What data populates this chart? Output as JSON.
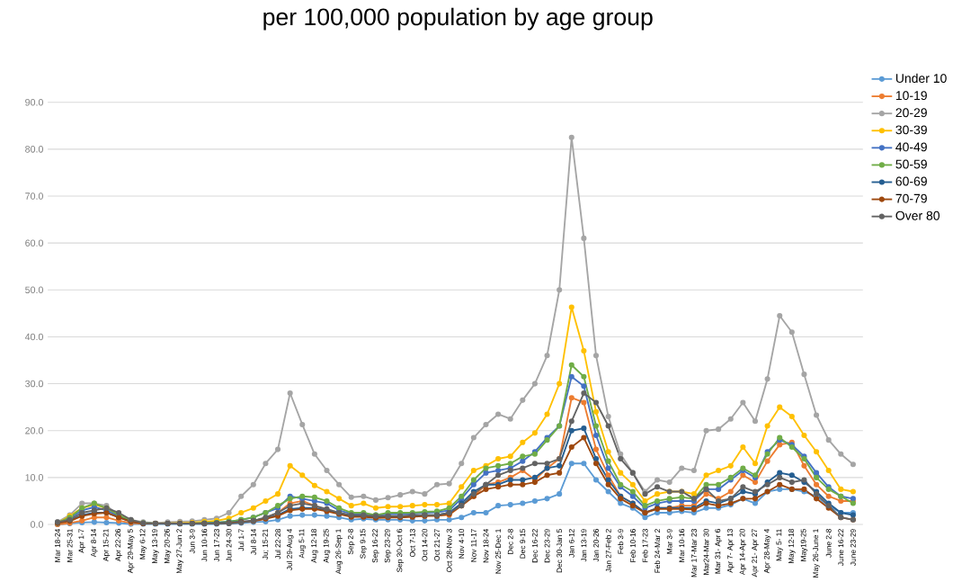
{
  "chart_data": {
    "type": "line",
    "title": "per 100,000 population by age group",
    "categories": [
      "Mar 18-24",
      "Mar 25-31",
      "Apr 1-7",
      "Apr 8-14",
      "Apr 15-21",
      "Apr 22-26",
      "Apr 29-May 5",
      "May 6-12",
      "May 13-19",
      "May 20-26",
      "May 27-Jun 2",
      "Jun 3-9",
      "Jun 10-16",
      "Jun 17-23",
      "Jun 24-30",
      "Jul 1-7",
      "Jul 8-14",
      "Ju; 15-21",
      "Jul 22-28",
      "Jul 29-Aug 4",
      "Aug 5-11",
      "Aug 12-18",
      "Aug 19-25",
      "Aug 26-Sep 1",
      "Sep 2-8",
      "Sep 9-15",
      "Sep 16-22",
      "Sep 23-29",
      "Sep 30-Oct 6",
      "Oct 7-13",
      "Oct 14-20",
      "Oct 21-27",
      "Oct 28-Nov 3",
      "Nov 4-10",
      "Nov 11-17",
      "Nov 18-24",
      "Nov 25-Dec 1",
      "Dec 2-8",
      "Dec 9-15",
      "Dec 16-22",
      "Dec 23-29",
      "Dec 30-Jan 5",
      "Jan 6-12",
      "Jan 13-19",
      "Jan 20-26",
      "Jan 27-Feb 2",
      "Feb 3-9",
      "Feb 10-16",
      "Feb 17-23",
      "Feb 24-Mar 2",
      "Mar 3-9",
      "Mar 10-16",
      "Mar 17-Mar 23",
      "Mar24-Mar 30",
      "Mar 31- Apr 6",
      "Apr 7- Apr 13",
      "Apr 14-Apr 20",
      "Apr 21- Apr 27",
      "Apr 28-May 4",
      "May 5- 11",
      "May 12-18",
      "May19-25",
      "May 26-June 1",
      "June 2-8",
      "June 16-22",
      "June 23-29"
    ],
    "series": [
      {
        "name": "Under 10",
        "color": "#5b9bd5",
        "values": [
          0,
          0.2,
          0.4,
          0.5,
          0.4,
          0.3,
          0.1,
          0.1,
          0.1,
          0.1,
          0.1,
          0.1,
          0.1,
          0.1,
          0.2,
          0.3,
          0.5,
          0.6,
          1,
          1.8,
          2,
          2,
          1.8,
          1.5,
          1,
          1.2,
          1,
          1,
          1,
          0.8,
          0.8,
          1,
          1,
          1.5,
          2.5,
          2.5,
          4,
          4.2,
          4.5,
          5,
          5.5,
          6.5,
          13,
          13,
          9.5,
          7,
          4.5,
          3.5,
          1.5,
          2.5,
          2.5,
          2.8,
          2.5,
          3.5,
          3.5,
          4.2,
          5.5,
          4.5,
          7,
          7.5,
          7.5,
          7,
          6,
          4,
          2.5,
          2.5
        ]
      },
      {
        "name": "10-19",
        "color": "#ed7d31",
        "values": [
          0,
          0.3,
          0.8,
          1.5,
          1.5,
          0.8,
          0.3,
          0.2,
          0.2,
          0.2,
          0.2,
          0.2,
          0.2,
          0.3,
          0.4,
          0.6,
          0.8,
          1.3,
          2.5,
          4.5,
          5,
          4,
          3,
          2.5,
          1.8,
          1.8,
          1.5,
          1.5,
          1.7,
          1.7,
          1.8,
          2,
          2,
          4,
          6,
          8.5,
          9,
          10,
          11.5,
          9.5,
          12,
          14,
          27,
          26,
          16,
          10.5,
          6,
          4.5,
          2.5,
          3.5,
          3.5,
          4,
          4,
          6.5,
          5.5,
          7,
          10.5,
          9,
          13.5,
          17,
          17.5,
          12.5,
          8.5,
          6,
          5,
          5
        ]
      },
      {
        "name": "20-29",
        "color": "#a5a5a5",
        "values": [
          0.5,
          2,
          4.5,
          4.5,
          4,
          2,
          1,
          0.5,
          0.3,
          0.5,
          0.6,
          0.7,
          1,
          1.3,
          2.5,
          6,
          8.5,
          13,
          16,
          28,
          21.3,
          15,
          11.5,
          8.5,
          5.8,
          6,
          5.2,
          5.7,
          6.3,
          7,
          6.5,
          8.5,
          8.7,
          13,
          18.5,
          21.3,
          23.5,
          22.5,
          26.5,
          30,
          36,
          50,
          82.5,
          61,
          36,
          23,
          15,
          11,
          7,
          9.5,
          9,
          12,
          11.5,
          20,
          20.3,
          22.5,
          26,
          22,
          31,
          44.5,
          41,
          32,
          23.3,
          18,
          15,
          12.8
        ]
      },
      {
        "name": "30-39",
        "color": "#ffc000",
        "values": [
          0.3,
          1.8,
          3.5,
          4.2,
          3.5,
          2,
          0.8,
          0.3,
          0.2,
          null,
          0.3,
          0.4,
          0.6,
          0.8,
          1.3,
          2.5,
          3.5,
          5,
          6.5,
          12.5,
          10.5,
          8.3,
          7,
          5.5,
          4,
          4.5,
          3.5,
          3.8,
          3.8,
          4,
          4.2,
          4.2,
          4.5,
          8,
          11.5,
          12.5,
          14,
          14.5,
          17.5,
          19.5,
          23.5,
          30,
          46.3,
          37,
          24,
          15.5,
          11,
          8.5,
          5,
          6.5,
          7,
          7,
          6.5,
          10.5,
          11.5,
          12.5,
          16.5,
          13,
          21,
          25,
          23,
          19,
          15.5,
          11.5,
          7.5,
          7
        ]
      },
      {
        "name": "40-49",
        "color": "#4472c4",
        "values": [
          0.3,
          1.3,
          3,
          3.7,
          3,
          1.8,
          0.7,
          0.3,
          0.2,
          0.2,
          0.2,
          0.2,
          0.3,
          0.4,
          0.6,
          1,
          1.5,
          2.5,
          3.5,
          6,
          5.5,
          5,
          4.5,
          3,
          2.3,
          2.3,
          2,
          2.2,
          2.2,
          2.3,
          2.5,
          2.6,
          3,
          5.5,
          8.5,
          11,
          11.5,
          12,
          13.5,
          15.5,
          18.5,
          21,
          31.5,
          29.5,
          19,
          12,
          8,
          6,
          3.5,
          4.5,
          5,
          5,
          5,
          7.5,
          7.5,
          9.5,
          11.5,
          10,
          15.5,
          18,
          17,
          14.5,
          11,
          8,
          6,
          5.5
        ]
      },
      {
        "name": "50-59",
        "color": "#70ad47",
        "values": [
          0.3,
          1.5,
          3.5,
          4.5,
          3.5,
          2,
          0.8,
          0.3,
          0.2,
          0.2,
          0.2,
          0.2,
          0.3,
          0.4,
          0.6,
          1,
          1.5,
          2.5,
          4,
          5.5,
          6,
          5.8,
          5,
          3.5,
          2.5,
          2.5,
          2,
          2.5,
          2.5,
          2.5,
          2.7,
          2.8,
          3.5,
          6,
          9.5,
          12,
          12.5,
          13,
          14.5,
          15,
          18,
          21,
          34,
          31.5,
          21,
          13.5,
          8.5,
          7,
          4,
          5,
          5.5,
          5.8,
          5.5,
          8.5,
          8.5,
          10,
          12,
          10.5,
          15,
          18.5,
          16.5,
          14,
          10,
          7.5,
          6,
          4.5
        ]
      },
      {
        "name": "60-69",
        "color": "#255e91",
        "values": [
          0.3,
          0.8,
          2,
          2.5,
          2.5,
          1.5,
          0.6,
          0.2,
          0.2,
          0.2,
          0.2,
          0.2,
          0.2,
          0.3,
          0.4,
          0.6,
          0.8,
          1.3,
          2,
          3.3,
          3.5,
          3.5,
          3,
          2.3,
          1.8,
          1.8,
          1.5,
          1.7,
          1.7,
          1.8,
          2,
          2,
          2.5,
          4.5,
          7,
          8.5,
          8.5,
          9.5,
          9.5,
          10,
          12,
          12.5,
          20,
          20.5,
          14,
          9.5,
          6,
          4.5,
          2.5,
          3.5,
          3.5,
          3.5,
          3.5,
          5,
          4.5,
          5.5,
          7,
          6.5,
          9,
          11,
          10.5,
          9,
          7,
          4.5,
          2.5,
          2
        ]
      },
      {
        "name": "70-79",
        "color": "#9e480e",
        "values": [
          0.3,
          0.7,
          1.8,
          2.3,
          2.5,
          1.5,
          0.6,
          0.2,
          0.2,
          0.2,
          0.2,
          0.2,
          0.2,
          0.2,
          0.3,
          0.5,
          0.7,
          1.2,
          1.8,
          3,
          3.3,
          3.3,
          2.8,
          2.2,
          1.6,
          1.6,
          1.4,
          1.5,
          1.5,
          1.6,
          1.8,
          1.8,
          2.2,
          4,
          6,
          7.5,
          8,
          8.5,
          8.5,
          9,
          10.5,
          11,
          16.5,
          18.5,
          13,
          8.5,
          5.5,
          4,
          2.5,
          3.3,
          3.3,
          3.3,
          3.2,
          4.5,
          4,
          4.5,
          5.5,
          5.5,
          7,
          8.5,
          7.5,
          7.5,
          5.5,
          3.5,
          1.5,
          1
        ]
      },
      {
        "name": "Over 80",
        "color": "#636363",
        "values": [
          0.5,
          1,
          2.5,
          3,
          3.5,
          2.5,
          1,
          0.3,
          0.2,
          0.2,
          0.2,
          0.2,
          0.2,
          0.2,
          0.2,
          0.4,
          0.8,
          1.5,
          2.5,
          4,
          4.5,
          4,
          3.3,
          2.5,
          2,
          2,
          1.8,
          1.8,
          1.8,
          2,
          2,
          2,
          2.5,
          4,
          6.5,
          8.5,
          10.5,
          11.5,
          12,
          13,
          13,
          14,
          22,
          28,
          26,
          21,
          14,
          11,
          6.5,
          8,
          7,
          7,
          5.5,
          7.5,
          5,
          5.5,
          8,
          7,
          8.5,
          10,
          9,
          9.5,
          6.5,
          4,
          1.5,
          1
        ]
      }
    ],
    "ylim": [
      0,
      90
    ],
    "yticks": [
      {
        "value": 0,
        "label": "0.0"
      },
      {
        "value": 10,
        "label": "10.0"
      },
      {
        "value": 20,
        "label": "20.0"
      },
      {
        "value": 30,
        "label": "30.0"
      },
      {
        "value": 40,
        "label": "40.0"
      },
      {
        "value": 50,
        "label": "50.0"
      },
      {
        "value": 60,
        "label": "60.0"
      },
      {
        "value": 70,
        "label": "70.0"
      },
      {
        "value": 80,
        "label": "80.0"
      },
      {
        "value": 90,
        "label": "90.0"
      }
    ],
    "grid": "y",
    "legend": "top right",
    "marker": "circle",
    "line_style": "solid"
  }
}
